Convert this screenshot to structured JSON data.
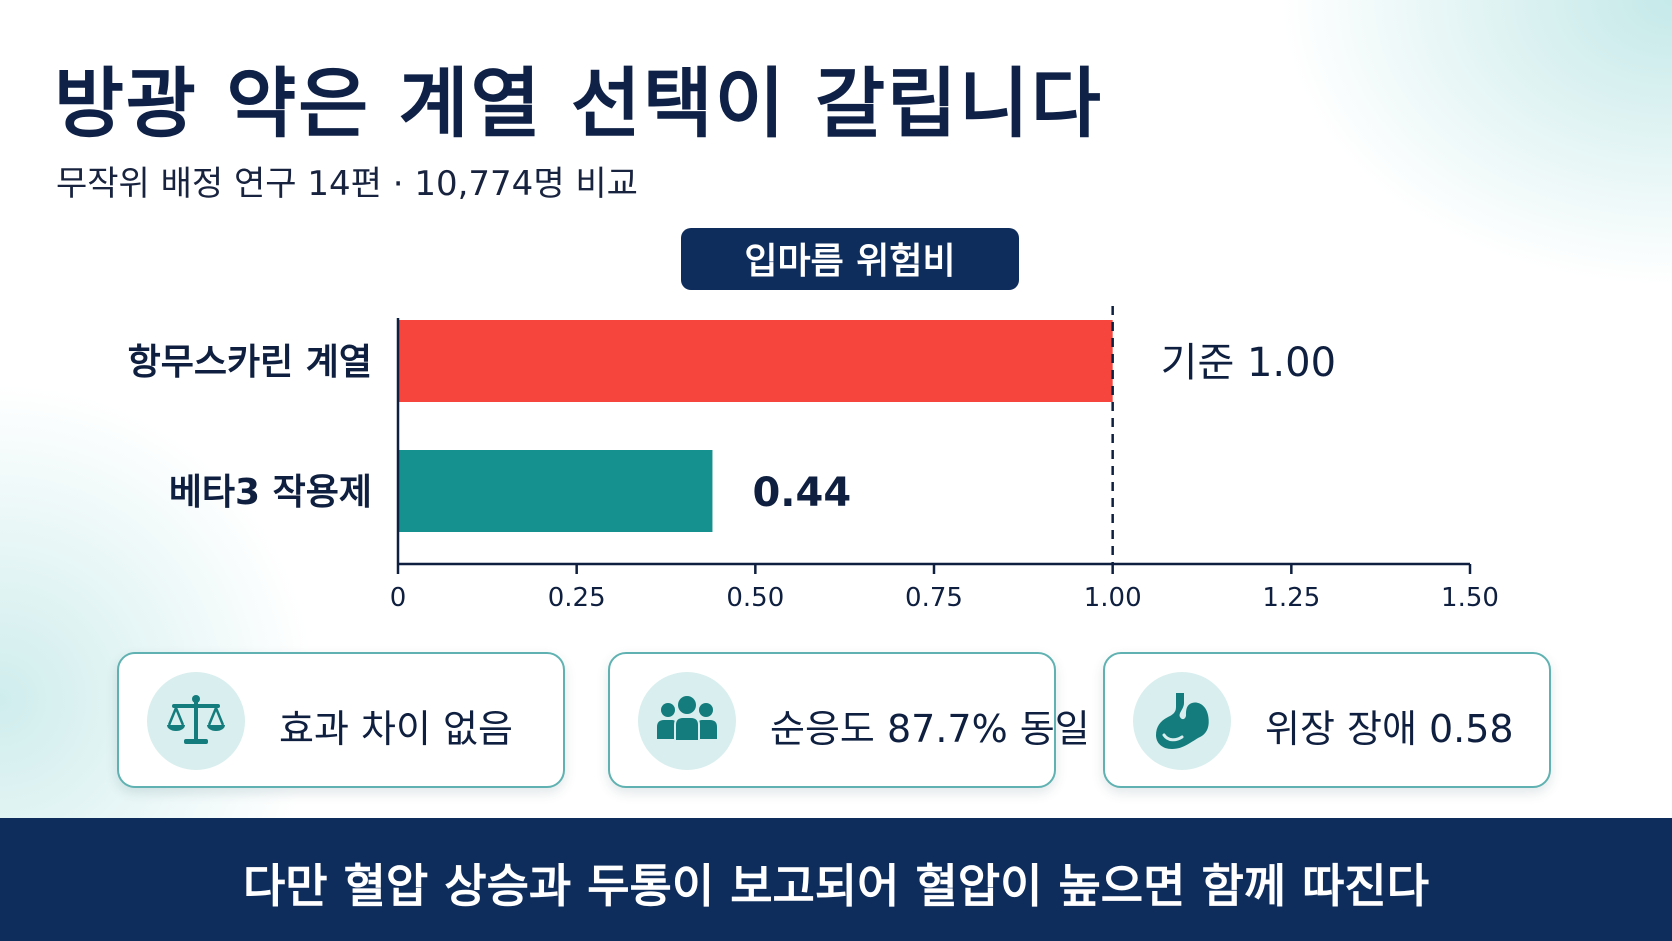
{
  "title": "방광 약은 계열 선택이 갈립니다",
  "subtitle": "무작위 배정 연구 14편 · 10,774명 비교",
  "chart_data": {
    "type": "bar",
    "orientation": "horizontal",
    "title": "입마름 위험비",
    "categories": [
      "항무스카린 계열",
      "베타3 작용제"
    ],
    "values": [
      1.0,
      0.44
    ],
    "value_labels": [
      "기준 1.00",
      "0.44"
    ],
    "colors": [
      "#f5453c",
      "#15918f"
    ],
    "xlim": [
      0,
      1.5
    ],
    "xticks": [
      "0",
      "0.25",
      "0.50",
      "0.75",
      "1.00",
      "1.25",
      "1.50"
    ],
    "reference_line": 1.0,
    "grid": false
  },
  "cards": [
    {
      "label": "효과 차이 없음",
      "icon": "balance-scale-icon"
    },
    {
      "label": "순응도 87.7% 동일",
      "icon": "people-group-icon"
    },
    {
      "label": "위장 장애 0.58",
      "icon": "stomach-icon"
    }
  ],
  "colors": {
    "navy": "#0e2d5c",
    "accent_teal": "#5fb2b1",
    "icon_bg": "#d9eeee"
  },
  "footer": {
    "text": "다만 혈압 상승과 두통이 보고되어 혈압이 높으면 함께 따진다"
  }
}
